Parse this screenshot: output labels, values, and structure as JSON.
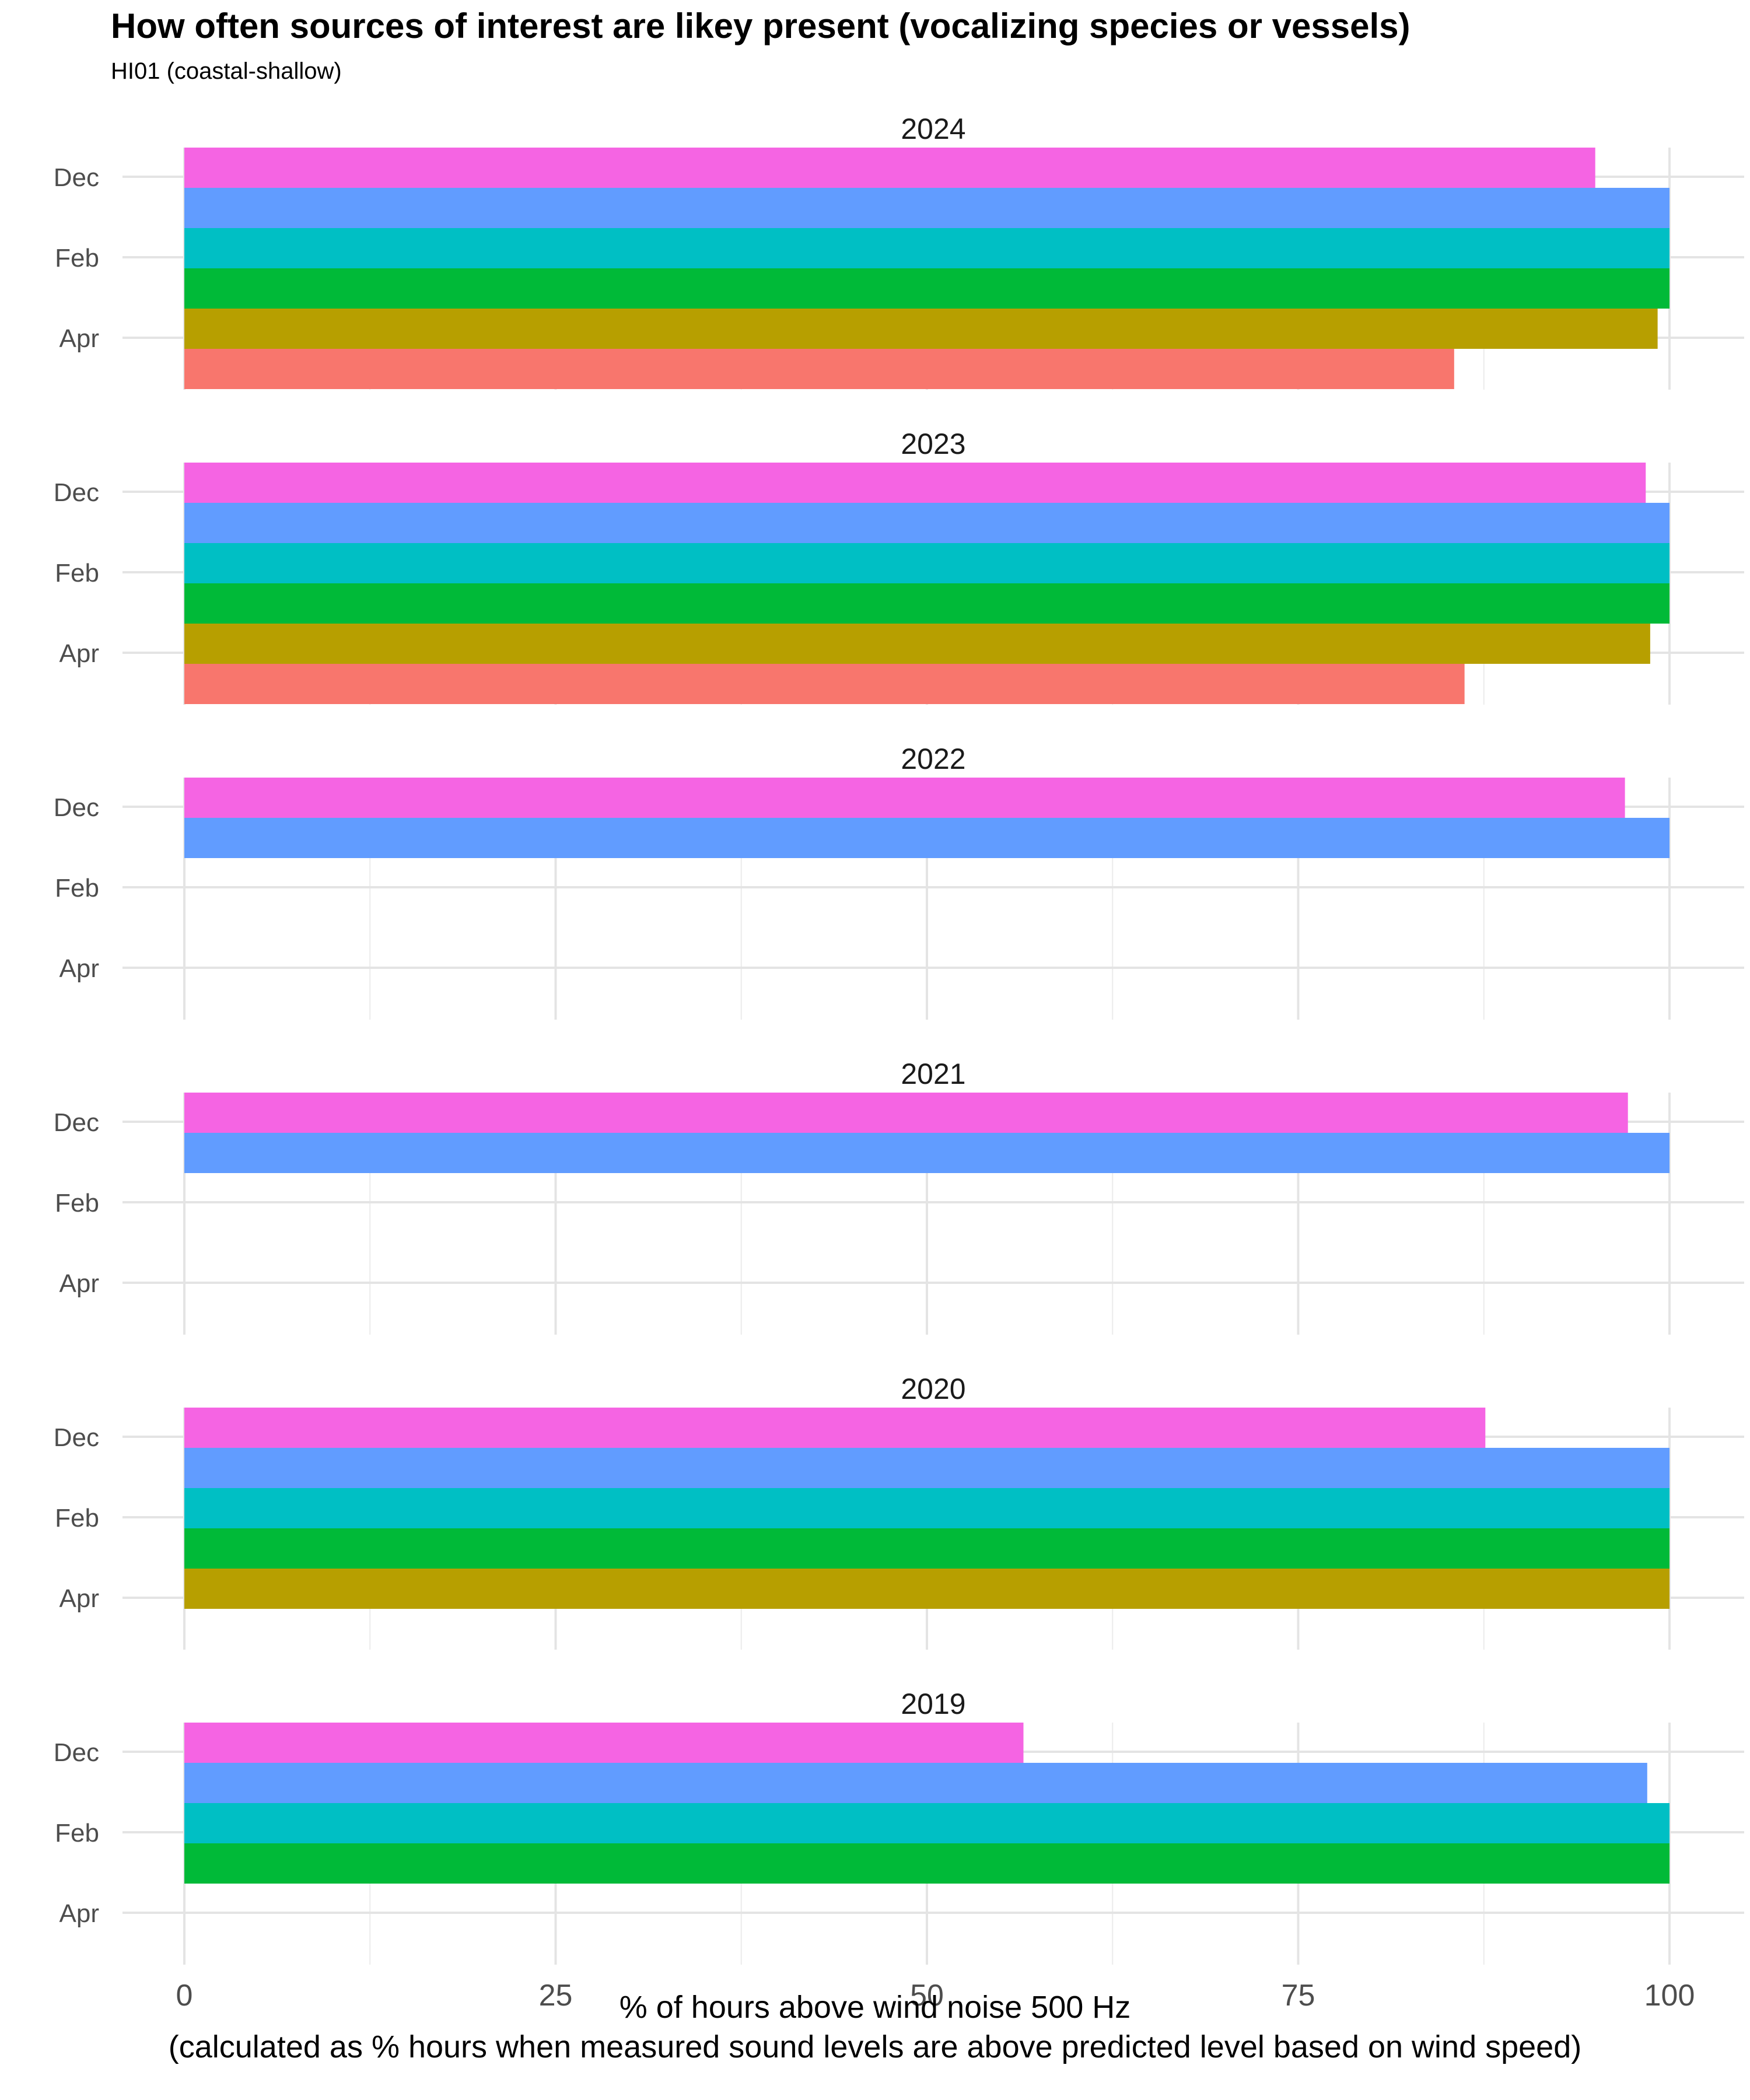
{
  "title": "How often sources of interest are likey present (vocalizing species or vessels)",
  "subtitle": "HI01 (coastal-shallow)",
  "x_title": "% of hours above wind noise 500 Hz",
  "x_title_sub": "(calculated as % hours when measured sound levels are above predicted level based on wind speed)",
  "chart_data": {
    "type": "bar",
    "orientation": "horizontal",
    "y_tick_labels": [
      "Dec",
      "Feb",
      "Apr"
    ],
    "x_ticks": [
      "0",
      "25",
      "50",
      "75",
      "100"
    ],
    "xlim": [
      0,
      100
    ],
    "grid": true,
    "legend": "none",
    "series_colors": [
      "#F564E3",
      "#619CFF",
      "#00BFC4",
      "#00BA38",
      "#B79F00",
      "#F8766D"
    ],
    "panels": [
      {
        "label": "2024",
        "values": [
          95,
          100,
          100,
          100,
          99.2,
          85.5
        ]
      },
      {
        "label": "2023",
        "values": [
          98.4,
          100,
          100,
          100,
          98.7,
          86.2
        ]
      },
      {
        "label": "2022",
        "values": [
          97,
          100,
          null,
          null,
          null,
          null
        ]
      },
      {
        "label": "2021",
        "values": [
          97.2,
          100,
          null,
          null,
          null,
          null
        ]
      },
      {
        "label": "2020",
        "values": [
          87.6,
          100,
          100,
          100,
          100,
          null
        ]
      },
      {
        "label": "2019",
        "values": [
          56.5,
          98.5,
          100,
          100,
          null,
          null
        ]
      }
    ]
  }
}
